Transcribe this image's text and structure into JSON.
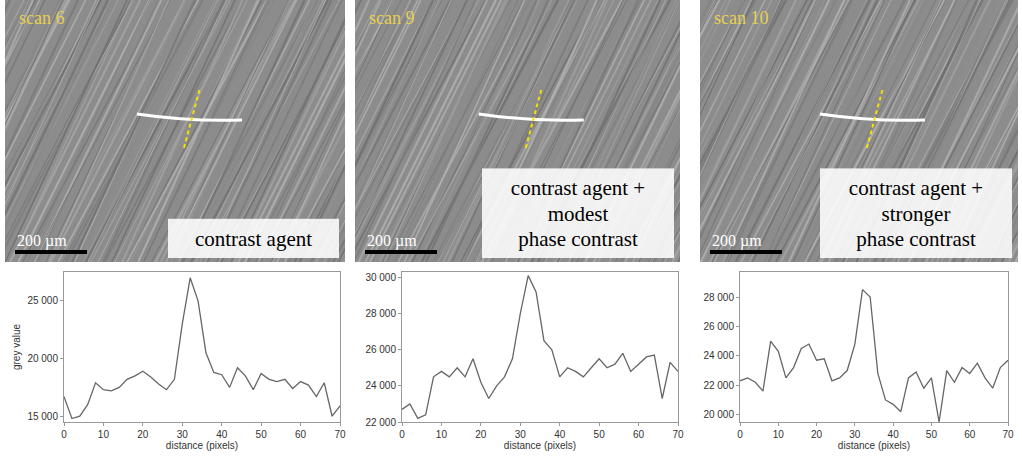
{
  "images": [
    {
      "scan": "scan 6",
      "caption": [
        "contrast agent"
      ],
      "scale_bar": "200 µm"
    },
    {
      "scan": "scan 9",
      "caption": [
        "contrast agent +",
        "modest",
        "phase contrast"
      ],
      "scale_bar": "200 µm"
    },
    {
      "scan": "scan 10",
      "caption": [
        "contrast agent +",
        "stronger",
        "phase contrast"
      ],
      "scale_bar": "200 µm"
    }
  ],
  "chart_data": [
    {
      "type": "line",
      "x_label": "distance (pixels)",
      "y_label": "grey value",
      "color": "#666666",
      "grid": false,
      "x": [
        0,
        2,
        4,
        6,
        8,
        10,
        12,
        14,
        16,
        18,
        20,
        22,
        24,
        26,
        28,
        30,
        32,
        34,
        36,
        38,
        40,
        42,
        44,
        46,
        48,
        50,
        52,
        54,
        56,
        58,
        60,
        62,
        64,
        66,
        68,
        70
      ],
      "values": [
        16700,
        14800,
        15000,
        16000,
        17900,
        17300,
        17200,
        17500,
        18200,
        18500,
        18900,
        18400,
        17800,
        17300,
        18200,
        23000,
        27000,
        25000,
        20500,
        18800,
        18600,
        17500,
        19200,
        18500,
        17300,
        18700,
        18200,
        18000,
        18200,
        17400,
        18000,
        17700,
        16700,
        17900,
        15000,
        15900
      ],
      "xlim": [
        0,
        70
      ],
      "xticks": [
        0,
        10,
        20,
        30,
        40,
        50,
        60,
        70
      ],
      "ylim": [
        14500,
        27500
      ],
      "yticks": [
        {
          "value": 15000,
          "label": "15 000"
        },
        {
          "value": 20000,
          "label": "20 000"
        },
        {
          "value": 25000,
          "label": "25 000"
        }
      ]
    },
    {
      "type": "line",
      "x_label": "distance (pixels)",
      "color": "#666666",
      "grid": false,
      "x": [
        0,
        2,
        4,
        6,
        8,
        10,
        12,
        14,
        16,
        18,
        20,
        22,
        24,
        26,
        28,
        30,
        32,
        34,
        36,
        38,
        40,
        42,
        44,
        46,
        48,
        50,
        52,
        54,
        56,
        58,
        60,
        62,
        64,
        66,
        68,
        70
      ],
      "values": [
        22700,
        23000,
        22200,
        22400,
        24500,
        24800,
        24500,
        25000,
        24500,
        25500,
        24200,
        23300,
        24000,
        24500,
        25500,
        28000,
        30100,
        29200,
        26500,
        26000,
        24500,
        25000,
        24800,
        24500,
        25000,
        25500,
        25000,
        25200,
        25800,
        24800,
        25200,
        25600,
        25700,
        23300,
        25300,
        24800
      ],
      "xlim": [
        0,
        70
      ],
      "xticks": [
        0,
        10,
        20,
        30,
        40,
        50,
        60,
        70
      ],
      "ylim": [
        22000,
        30300
      ],
      "yticks": [
        {
          "value": 22000,
          "label": "22 000"
        },
        {
          "value": 24000,
          "label": "24 000"
        },
        {
          "value": 26000,
          "label": "26 000"
        },
        {
          "value": 28000,
          "label": "28 000"
        },
        {
          "value": 30000,
          "label": "30 000"
        }
      ]
    },
    {
      "type": "line",
      "x_label": "distance (pixels)",
      "color": "#666666",
      "grid": false,
      "x": [
        0,
        2,
        4,
        6,
        8,
        10,
        12,
        14,
        16,
        18,
        20,
        22,
        24,
        26,
        28,
        30,
        32,
        34,
        36,
        38,
        40,
        42,
        44,
        46,
        48,
        50,
        52,
        54,
        56,
        58,
        60,
        62,
        64,
        66,
        68,
        70
      ],
      "values": [
        22300,
        22500,
        22200,
        21600,
        25000,
        24300,
        22500,
        23200,
        24500,
        24800,
        23700,
        23800,
        22300,
        22500,
        23000,
        24800,
        28500,
        28000,
        22800,
        21000,
        20700,
        20200,
        22500,
        22900,
        21800,
        22500,
        19500,
        23000,
        22200,
        23200,
        22800,
        23500,
        22500,
        21800,
        23200,
        23700
      ],
      "xlim": [
        0,
        70
      ],
      "xticks": [
        0,
        10,
        20,
        30,
        40,
        50,
        60,
        70
      ],
      "ylim": [
        19500,
        29700
      ],
      "yticks": [
        {
          "value": 20000,
          "label": "20 000"
        },
        {
          "value": 22000,
          "label": "22 000"
        },
        {
          "value": 24000,
          "label": "24 000"
        },
        {
          "value": 26000,
          "label": "26 000"
        },
        {
          "value": 28000,
          "label": "28 000"
        }
      ]
    }
  ]
}
